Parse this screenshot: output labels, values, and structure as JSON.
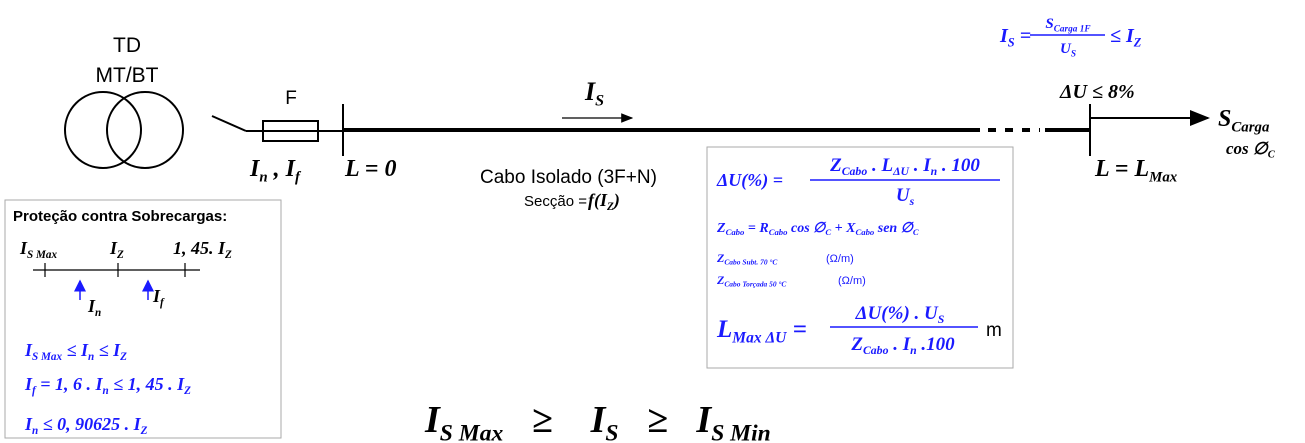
{
  "labels": {
    "td": "TD",
    "mtbt": "MT/BT",
    "fuse": "F",
    "cable": "Cabo Isolado (3F+N)",
    "section": "Secção =",
    "protection_title": "Proteção contra Sobrecargas:",
    "ohm1": "(Ω/m)",
    "ohm2": "(Ω/m)",
    "unit_m": "m"
  },
  "formulas": {
    "is_top_left": [
      {
        "t": "I"
      },
      {
        "s": "S"
      },
      {
        "t": " ="
      }
    ],
    "is_top_num": [
      {
        "t": "S"
      },
      {
        "s": "Carga 1F"
      }
    ],
    "is_top_den": [
      {
        "t": "U"
      },
      {
        "s": "S"
      }
    ],
    "is_top_right": [
      {
        "t": "≤ I"
      },
      {
        "s": "Z"
      }
    ],
    "du_max": [
      {
        "t": "ΔU ≤ 8%"
      }
    ],
    "is_line": [
      {
        "t": "I"
      },
      {
        "s": "S"
      }
    ],
    "in_if": [
      {
        "t": "I"
      },
      {
        "s": "n"
      },
      {
        "t": " , I"
      },
      {
        "s": "f"
      }
    ],
    "l0": [
      {
        "t": "L = 0"
      }
    ],
    "lmax": [
      {
        "t": "L = L"
      },
      {
        "s": "Max"
      }
    ],
    "s_carga": [
      {
        "t": "S"
      },
      {
        "s": "Carga"
      }
    ],
    "cos_c": [
      {
        "t": "cos ∅"
      },
      {
        "s": "C"
      }
    ],
    "section_f": [
      {
        "t": "f(I"
      },
      {
        "s": "Z"
      },
      {
        "t": ")"
      }
    ],
    "du_left": [
      {
        "t": "ΔU(%) ="
      }
    ],
    "du_num": [
      {
        "t": "Z"
      },
      {
        "s": "Cabo"
      },
      {
        "t": " . L"
      },
      {
        "s": "ΔU"
      },
      {
        "t": " . I"
      },
      {
        "s": "n"
      },
      {
        "t": " . 100"
      }
    ],
    "du_den": [
      {
        "t": "U"
      },
      {
        "s": "s"
      }
    ],
    "zcabo": [
      {
        "t": "Z"
      },
      {
        "s": "Cabo"
      },
      {
        "t": " = R"
      },
      {
        "s": "Cabo"
      },
      {
        "t": " cos ∅"
      },
      {
        "s": "C"
      },
      {
        "t": " + X"
      },
      {
        "s": "Cabo"
      },
      {
        "t": " sen ∅"
      },
      {
        "s": "C"
      }
    ],
    "z_subt": [
      {
        "t": "Z"
      },
      {
        "s": "Cabo Subt. 70 °C"
      }
    ],
    "z_torc": [
      {
        "t": "Z"
      },
      {
        "s": "Cabo Torçada 50 °C"
      }
    ],
    "lmax_left": [
      {
        "t": "L"
      },
      {
        "s": "Max ΔU"
      },
      {
        "t": " ="
      }
    ],
    "lmax_num": [
      {
        "t": "ΔU(%) . U"
      },
      {
        "s": "S"
      }
    ],
    "lmax_den": [
      {
        "t": "Z"
      },
      {
        "s": "Cabo"
      },
      {
        "t": " . I"
      },
      {
        "s": "n"
      },
      {
        "t": " .100"
      }
    ],
    "tick_ismax": [
      {
        "t": "I"
      },
      {
        "s": "S Max"
      }
    ],
    "tick_iz": [
      {
        "t": "I"
      },
      {
        "s": "Z"
      }
    ],
    "tick_145": [
      {
        "t": "1, 45. I"
      },
      {
        "s": "Z"
      }
    ],
    "arrow_in": [
      {
        "t": "I"
      },
      {
        "s": "n"
      }
    ],
    "arrow_if": [
      {
        "t": "I"
      },
      {
        "s": "f"
      }
    ],
    "cond1": [
      {
        "t": "I"
      },
      {
        "s": "S Max"
      },
      {
        "t": " ≤ I"
      },
      {
        "s": "n"
      },
      {
        "t": " ≤ I"
      },
      {
        "s": "Z"
      }
    ],
    "cond2": [
      {
        "t": "I"
      },
      {
        "s": "f"
      },
      {
        "t": " = 1, 6 . I"
      },
      {
        "s": "n"
      },
      {
        "t": " ≤ 1, 45 . I"
      },
      {
        "s": "Z"
      }
    ],
    "cond3": [
      {
        "t": "I"
      },
      {
        "s": "n"
      },
      {
        "t": " ≤ 0, 90625 . I"
      },
      {
        "s": "Z"
      }
    ],
    "bottom": [
      {
        "t": "I"
      },
      {
        "s": "S Max"
      },
      {
        "t": "   ≥    I"
      },
      {
        "s": "S"
      },
      {
        "t": "   ≥   I"
      },
      {
        "s": "S Min"
      }
    ]
  }
}
